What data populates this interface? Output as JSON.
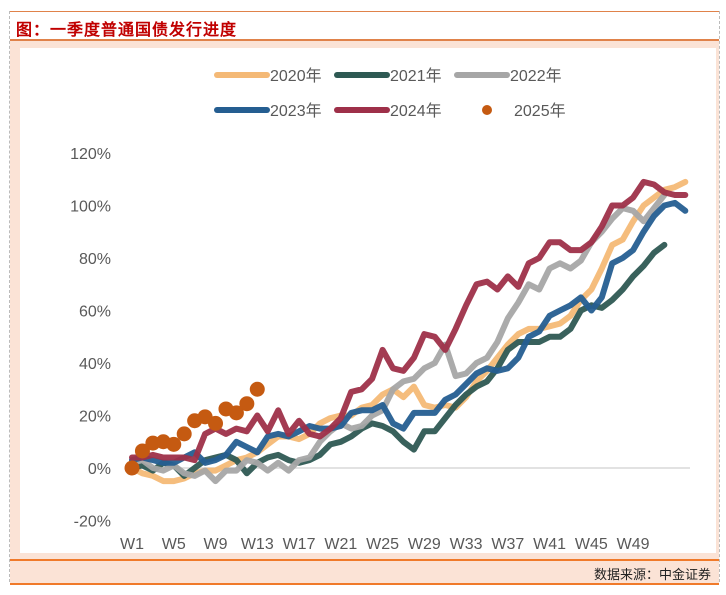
{
  "title": "图：一季度普通国债发行进度",
  "source": "数据来源：中金证券",
  "chart_data": {
    "type": "line",
    "title": "",
    "xlabel": "",
    "ylabel": "",
    "ylim": [
      -20,
      120
    ],
    "yticks": [
      "-20%",
      "0%",
      "20%",
      "40%",
      "60%",
      "80%",
      "100%",
      "120%"
    ],
    "ytick_values": [
      -20,
      0,
      20,
      40,
      60,
      80,
      100,
      120
    ],
    "xtick_labels": [
      "W1",
      "W5",
      "W9",
      "W13",
      "W17",
      "W21",
      "W25",
      "W29",
      "W33",
      "W37",
      "W41",
      "W45",
      "W49"
    ],
    "xtick_weeks": [
      1,
      5,
      9,
      13,
      17,
      21,
      25,
      29,
      33,
      37,
      41,
      45,
      49
    ],
    "xlim": [
      1,
      54
    ],
    "grid": "zero line only",
    "legend_position": "top",
    "series": [
      {
        "name": "2020年",
        "color": "#f4b976",
        "style": "line",
        "values": [
          0,
          -2,
          -3,
          -5,
          -5,
          -4,
          -2,
          -1,
          -1,
          1,
          3,
          4,
          6,
          9,
          12,
          12,
          11,
          13,
          17,
          19,
          20,
          20,
          23,
          24,
          28,
          30,
          27,
          31,
          24,
          23,
          24,
          23,
          27,
          33,
          37,
          42,
          47,
          51,
          53,
          53,
          54,
          55,
          58,
          64,
          68,
          76,
          85,
          87,
          94,
          100,
          103,
          106,
          107,
          109
        ]
      },
      {
        "name": "2021年",
        "color": "#2e5953",
        "style": "line",
        "values": [
          0,
          1,
          -1,
          2,
          1,
          -3,
          0,
          3,
          4,
          5,
          3,
          -2,
          2,
          4,
          5,
          3,
          2,
          3,
          5,
          9,
          10,
          12,
          15,
          17,
          16,
          14,
          10,
          7,
          14,
          14,
          19,
          24,
          28,
          31,
          33,
          38,
          45,
          48,
          48,
          48,
          50,
          50,
          53,
          60,
          62,
          61,
          64,
          68,
          73,
          77,
          82,
          85
        ]
      },
      {
        "name": "2022年",
        "color": "#a6a6a6",
        "style": "line",
        "values": [
          2,
          3,
          0,
          -1,
          1,
          -2,
          -3,
          -1,
          -5,
          -1,
          -1,
          3,
          2,
          -1,
          2,
          -1,
          3,
          4,
          10,
          14,
          17,
          15,
          16,
          20,
          22,
          30,
          33,
          34,
          38,
          40,
          47,
          35,
          36,
          40,
          42,
          48,
          57,
          63,
          70,
          68,
          76,
          78,
          76,
          79,
          86,
          90,
          95,
          99,
          98,
          94,
          99,
          104
        ]
      },
      {
        "name": "2023年",
        "color": "#255e91",
        "style": "line",
        "values": [
          3,
          4,
          3,
          2,
          2,
          4,
          6,
          2,
          3,
          5,
          10,
          8,
          6,
          12,
          13,
          12,
          14,
          16,
          15,
          15,
          16,
          21,
          22,
          22,
          24,
          17,
          15,
          21,
          21,
          21,
          26,
          28,
          32,
          36,
          38,
          37,
          38,
          42,
          50,
          52,
          58,
          60,
          62,
          65,
          60,
          65,
          78,
          80,
          83,
          90,
          96,
          100,
          101,
          98
        ]
      },
      {
        "name": "2024年",
        "color": "#9e3049",
        "style": "line",
        "values": [
          4,
          4,
          5,
          4,
          4,
          4,
          3,
          13,
          15,
          13,
          15,
          14,
          20,
          14,
          22,
          13,
          18,
          13,
          12,
          15,
          19,
          29,
          30,
          34,
          45,
          38,
          37,
          42,
          51,
          50,
          45,
          53,
          62,
          70,
          71,
          68,
          73,
          69,
          78,
          80,
          86,
          86,
          83,
          83,
          86,
          92,
          100,
          100,
          103,
          109,
          108,
          105,
          104,
          104
        ]
      },
      {
        "name": "2025年",
        "color": "#c55a11",
        "style": "dot",
        "values": [
          0,
          6.5,
          9.5,
          10,
          9,
          13,
          18,
          19.5,
          17,
          22.5,
          21,
          24.5,
          30
        ]
      }
    ]
  }
}
